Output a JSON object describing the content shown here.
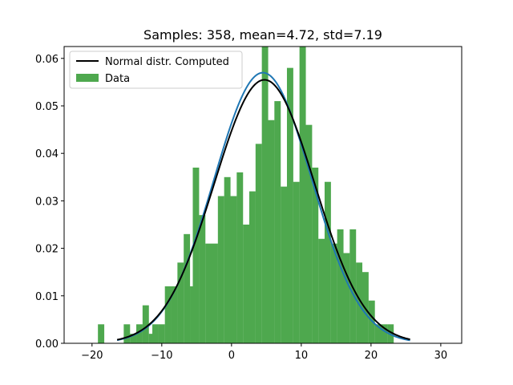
{
  "chart_data": {
    "type": "bar",
    "title": "Samples: 358, mean=4.72, std=7.19",
    "xlabel": "",
    "ylabel": "",
    "xlim": [
      -24,
      33
    ],
    "ylim": [
      0,
      0.0625
    ],
    "x_ticks": [
      -20,
      -10,
      0,
      10,
      20,
      30
    ],
    "y_ticks": [
      0.0,
      0.01,
      0.02,
      0.03,
      0.04,
      0.05,
      0.06
    ],
    "y_tick_labels": [
      "0.00",
      "0.01",
      "0.02",
      "0.03",
      "0.04",
      "0.05",
      "0.06"
    ],
    "grid": false,
    "legend": {
      "placement": "top-left",
      "entries": [
        "Normal distr. Computed",
        "Data"
      ]
    },
    "colors": {
      "histogram": "#4ea84e",
      "computed_line": "#000000",
      "fitted_line": "#1f77b4"
    },
    "histogram": {
      "name": "Data",
      "bin_width": 0.91,
      "bins": [
        {
          "x": -18.7,
          "y": 0.004
        },
        {
          "x": -15.0,
          "y": 0.004
        },
        {
          "x": -14.1,
          "y": 0.002
        },
        {
          "x": -13.2,
          "y": 0.004
        },
        {
          "x": -12.3,
          "y": 0.008
        },
        {
          "x": -11.4,
          "y": 0.002
        },
        {
          "x": -10.9,
          "y": 0.004
        },
        {
          "x": -10.0,
          "y": 0.004
        },
        {
          "x": -9.1,
          "y": 0.012
        },
        {
          "x": -8.2,
          "y": 0.012
        },
        {
          "x": -7.3,
          "y": 0.017
        },
        {
          "x": -6.4,
          "y": 0.023
        },
        {
          "x": -5.5,
          "y": 0.012
        },
        {
          "x": -5.1,
          "y": 0.037
        },
        {
          "x": -4.2,
          "y": 0.027
        },
        {
          "x": -3.3,
          "y": 0.021
        },
        {
          "x": -2.4,
          "y": 0.021
        },
        {
          "x": -1.5,
          "y": 0.031
        },
        {
          "x": -0.6,
          "y": 0.035
        },
        {
          "x": 0.3,
          "y": 0.031
        },
        {
          "x": 1.2,
          "y": 0.036
        },
        {
          "x": 2.1,
          "y": 0.025
        },
        {
          "x": 3.0,
          "y": 0.032
        },
        {
          "x": 3.9,
          "y": 0.042
        },
        {
          "x": 4.8,
          "y": 0.0625
        },
        {
          "x": 5.7,
          "y": 0.047
        },
        {
          "x": 6.6,
          "y": 0.051
        },
        {
          "x": 7.5,
          "y": 0.033
        },
        {
          "x": 8.4,
          "y": 0.058
        },
        {
          "x": 9.3,
          "y": 0.034
        },
        {
          "x": 10.2,
          "y": 0.0625
        },
        {
          "x": 11.1,
          "y": 0.046
        },
        {
          "x": 12.0,
          "y": 0.037
        },
        {
          "x": 12.9,
          "y": 0.022
        },
        {
          "x": 13.8,
          "y": 0.034
        },
        {
          "x": 14.7,
          "y": 0.021
        },
        {
          "x": 15.6,
          "y": 0.024
        },
        {
          "x": 16.5,
          "y": 0.019
        },
        {
          "x": 17.4,
          "y": 0.024
        },
        {
          "x": 18.3,
          "y": 0.017
        },
        {
          "x": 19.2,
          "y": 0.015
        },
        {
          "x": 20.1,
          "y": 0.009
        },
        {
          "x": 21.0,
          "y": 0.004
        },
        {
          "x": 21.9,
          "y": 0.004
        },
        {
          "x": 22.8,
          "y": 0.004
        }
      ]
    },
    "curves": [
      {
        "name": "Normal distr. Computed",
        "mean": 4.72,
        "std": 7.19,
        "x_range": [
          -16.4,
          25.6
        ]
      }
    ],
    "unlabeled_curves": [
      {
        "mean": 4.5,
        "std": 7.0,
        "x_range": [
          -16.4,
          25.6
        ]
      }
    ]
  }
}
